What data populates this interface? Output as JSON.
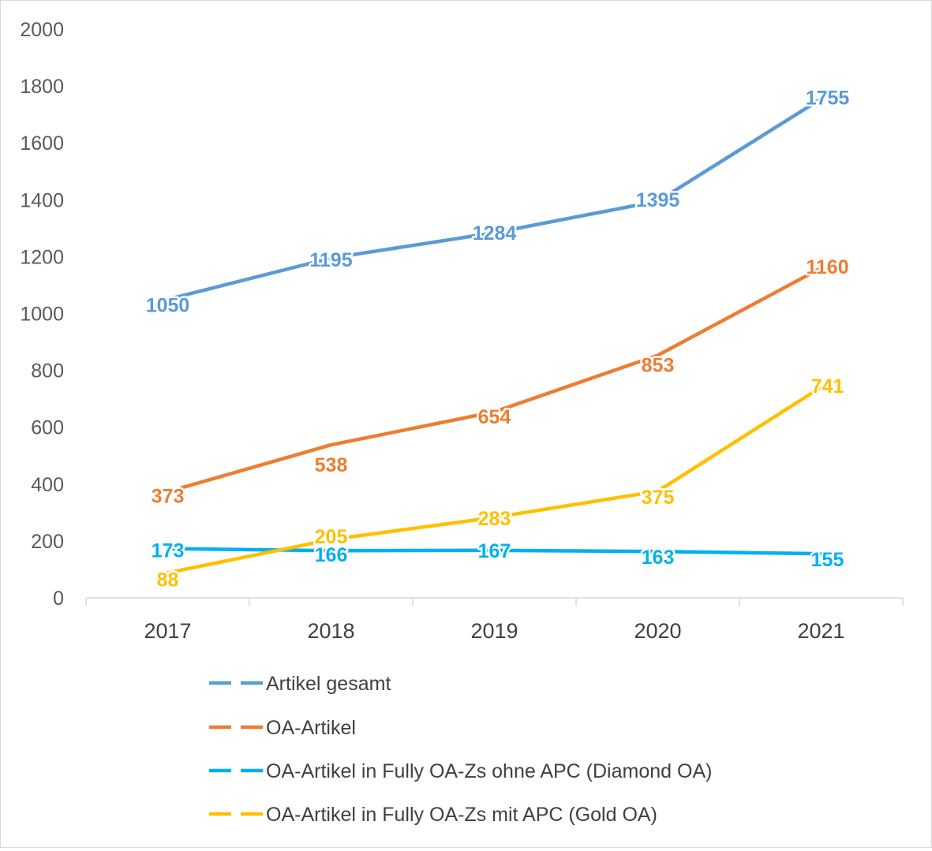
{
  "chart_data": {
    "type": "line",
    "categories": [
      "2017",
      "2018",
      "2019",
      "2020",
      "2021"
    ],
    "ylim": [
      0,
      2000
    ],
    "yticks": [
      "0",
      "200",
      "400",
      "600",
      "800",
      "1000",
      "1200",
      "1400",
      "1600",
      "1800",
      "2000"
    ],
    "grid": false,
    "legend_position": "bottom",
    "series": [
      {
        "name": "Artikel gesamt",
        "values": [
          1050,
          1195,
          1284,
          1395,
          1755
        ],
        "color": "#5b9bd5"
      },
      {
        "name": "OA-Artikel",
        "values": [
          373,
          538,
          654,
          853,
          1160
        ],
        "color": "#ed7d31"
      },
      {
        "name": "OA-Artikel in Fully OA-Zs ohne APC (Diamond OA)",
        "values": [
          173,
          166,
          167,
          163,
          155
        ],
        "color": "#00b0f0"
      },
      {
        "name": "OA-Artikel in Fully OA-Zs mit APC (Gold OA)",
        "values": [
          88,
          205,
          283,
          375,
          741
        ],
        "color": "#ffc000"
      }
    ]
  }
}
